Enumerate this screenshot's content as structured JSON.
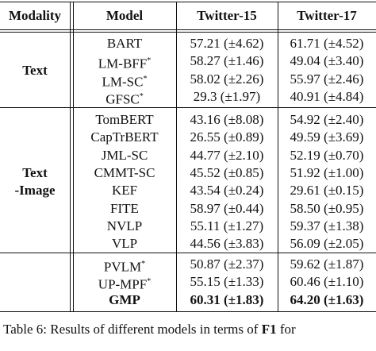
{
  "header": {
    "modality": "Modality",
    "model": "Model",
    "twitter15": "Twitter-15",
    "twitter17": "Twitter-17"
  },
  "groups": [
    {
      "modality": [
        "Text"
      ],
      "rows": [
        {
          "model": "BART",
          "t15": "57.21 (±4.62)",
          "t17": "61.71 (±4.52)"
        },
        {
          "model": "LM-BFF",
          "note": "*",
          "t15": "58.27 (±1.46)",
          "t17": "49.04 (±3.40)"
        },
        {
          "model": "LM-SC",
          "note": "*",
          "t15": "58.02 (±2.26)",
          "t17": "55.97 (±2.46)"
        },
        {
          "model": "GFSC",
          "note": "*",
          "t15": "29.3 (±1.97)",
          "t17": "40.91 (±4.84)"
        }
      ]
    },
    {
      "modality": [
        "Text",
        "-Image"
      ],
      "rows": [
        {
          "model": "TomBERT",
          "t15": "43.16 (±8.08)",
          "t17": "54.92 (±2.40)"
        },
        {
          "model": "CapTrBERT",
          "t15": "26.55 (±0.89)",
          "t17": "49.59 (±3.69)"
        },
        {
          "model": "JML-SC",
          "t15": "44.77 (±2.10)",
          "t17": "52.19 (±0.70)"
        },
        {
          "model": "CMMT-SC",
          "t15": "45.52 (±0.85)",
          "t17": "51.92 (±1.00)"
        },
        {
          "model": "KEF",
          "t15": "43.54 (±0.24)",
          "t17": "29.61 (±0.15)"
        },
        {
          "model": "FITE",
          "t15": "58.97 (±0.44)",
          "t17": "58.50 (±0.95)"
        },
        {
          "model": "NVLP",
          "t15": "55.11 (±1.27)",
          "t17": "59.37 (±1.38)"
        },
        {
          "model": "VLP",
          "t15": "44.56 (±3.83)",
          "t17": "56.09 (±2.05)"
        }
      ]
    },
    {
      "modality": [],
      "rows": [
        {
          "model": "PVLM",
          "note": "*",
          "t15": "50.87 (±2.37)",
          "t17": "59.62 (±1.87)"
        },
        {
          "model": "UP-MPF",
          "note": "*",
          "t15": "55.15 (±1.33)",
          "t17": "60.46 (±1.10)"
        },
        {
          "model": "GMP",
          "t15": "60.31 (±1.83)",
          "t17": "64.20 (±1.63)",
          "bold": true
        }
      ]
    }
  ],
  "caption": {
    "before": "Table 6: Results of different models in terms of ",
    "bold": "F1",
    "after": " for"
  }
}
